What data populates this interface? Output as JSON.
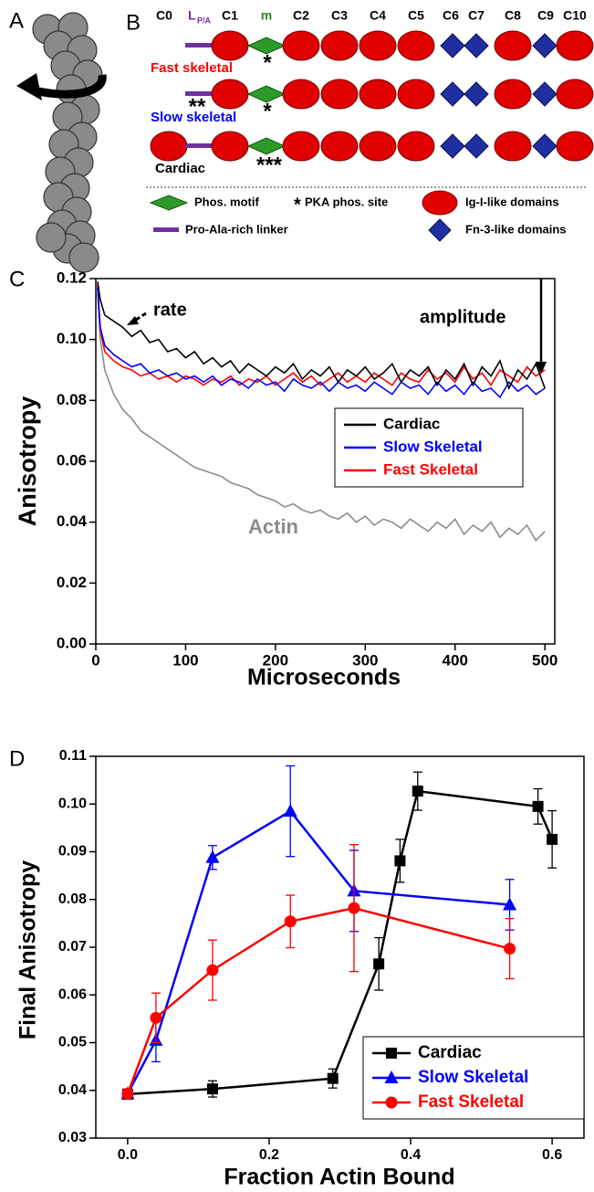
{
  "diagram": {
    "panel_labels": [
      "A",
      "B"
    ],
    "header": [
      "C0",
      {
        "main": "L",
        "sub": "P/A"
      },
      "C1",
      "m",
      "C2",
      "C3",
      "C4",
      "C5",
      "C6",
      "C7",
      "C8",
      "C9",
      "C10"
    ],
    "rows": [
      {
        "name": "Fast skeletal",
        "marks": [
          "*"
        ]
      },
      {
        "name": "Slow skeletal",
        "marks": [
          "**",
          "*"
        ]
      },
      {
        "name": "Cardiac",
        "marks": [
          "***"
        ]
      }
    ],
    "legend": [
      "Phos. motif",
      "*",
      "PKA phos. site",
      "Ig-I-like domains",
      "Pro-Ala-rich linker",
      "Fn-3-like domains"
    ]
  },
  "chart_data": [
    {
      "type": "line",
      "panel_label": "C",
      "xlabel": "Microseconds",
      "ylabel": "Anisotropy",
      "xlim": [
        0,
        511
      ],
      "ylim": [
        0,
        0.12
      ],
      "xticks": [
        0,
        100,
        200,
        300,
        400,
        500
      ],
      "yticks": [
        {
          "value": 0,
          "label": "0.00"
        },
        0.02,
        0.04,
        0.06,
        0.08,
        {
          "value": 0.1,
          "label": "0.10"
        },
        0.12
      ],
      "x": [
        2,
        5,
        10,
        20,
        30,
        40,
        50,
        60,
        70,
        80,
        90,
        100,
        110,
        120,
        130,
        140,
        150,
        160,
        170,
        180,
        190,
        200,
        210,
        220,
        230,
        240,
        250,
        260,
        270,
        280,
        290,
        300,
        310,
        320,
        330,
        340,
        350,
        360,
        370,
        380,
        390,
        400,
        410,
        420,
        430,
        440,
        450,
        460,
        470,
        480,
        490,
        500
      ],
      "series": [
        {
          "color": "#8c8c8c",
          "values": [
            0.115,
            0.1,
            0.09,
            0.082,
            0.077,
            0.074,
            0.07,
            0.068,
            0.066,
            0.064,
            0.062,
            0.06,
            0.058,
            0.057,
            0.056,
            0.055,
            0.053,
            0.052,
            0.051,
            0.049,
            0.048,
            0.047,
            0.045,
            0.046,
            0.044,
            0.043,
            0.044,
            0.042,
            0.041,
            0.043,
            0.04,
            0.042,
            0.039,
            0.041,
            0.04,
            0.038,
            0.041,
            0.039,
            0.037,
            0.04,
            0.038,
            0.041,
            0.036,
            0.039,
            0.037,
            0.04,
            0.035,
            0.038,
            0.036,
            0.039,
            0.034,
            0.037
          ]
        },
        {
          "name": "Fast Skeletal",
          "color": "#ff0000",
          "values": [
            0.118,
            0.103,
            0.096,
            0.093,
            0.091,
            0.09,
            0.088,
            0.089,
            0.087,
            0.088,
            0.086,
            0.088,
            0.087,
            0.085,
            0.087,
            0.086,
            0.088,
            0.085,
            0.087,
            0.086,
            0.088,
            0.085,
            0.087,
            0.089,
            0.086,
            0.088,
            0.085,
            0.087,
            0.089,
            0.086,
            0.088,
            0.086,
            0.089,
            0.087,
            0.085,
            0.089,
            0.087,
            0.086,
            0.09,
            0.087,
            0.089,
            0.086,
            0.091,
            0.087,
            0.089,
            0.085,
            0.09,
            0.088,
            0.086,
            0.091,
            0.088,
            0.09
          ]
        },
        {
          "name": "Slow Skeletal",
          "color": "#0000ff",
          "values": [
            0.117,
            0.104,
            0.098,
            0.095,
            0.093,
            0.091,
            0.092,
            0.089,
            0.09,
            0.088,
            0.089,
            0.087,
            0.088,
            0.086,
            0.088,
            0.085,
            0.087,
            0.086,
            0.084,
            0.087,
            0.085,
            0.086,
            0.083,
            0.087,
            0.085,
            0.084,
            0.086,
            0.083,
            0.086,
            0.084,
            0.085,
            0.083,
            0.086,
            0.084,
            0.082,
            0.086,
            0.084,
            0.085,
            0.082,
            0.086,
            0.083,
            0.085,
            0.082,
            0.086,
            0.083,
            0.084,
            0.081,
            0.086,
            0.083,
            0.085,
            0.082,
            0.084
          ]
        },
        {
          "name": "Cardiac",
          "color": "#000000",
          "values": [
            0.119,
            0.113,
            0.108,
            0.106,
            0.104,
            0.101,
            0.103,
            0.099,
            0.1,
            0.096,
            0.097,
            0.094,
            0.096,
            0.092,
            0.094,
            0.091,
            0.093,
            0.089,
            0.092,
            0.09,
            0.088,
            0.091,
            0.089,
            0.092,
            0.087,
            0.09,
            0.088,
            0.091,
            0.086,
            0.09,
            0.088,
            0.091,
            0.087,
            0.089,
            0.092,
            0.086,
            0.09,
            0.088,
            0.091,
            0.085,
            0.09,
            0.087,
            0.092,
            0.085,
            0.091,
            0.088,
            0.093,
            0.084,
            0.09,
            0.087,
            0.092,
            0.084
          ]
        }
      ],
      "legend_order": [
        3,
        2,
        1
      ],
      "annotations": [
        "rate",
        "amplitude",
        "Actin"
      ],
      "legend": "center right"
    },
    {
      "type": "line",
      "panel_label": "D",
      "xlabel": "Fraction Actin Bound",
      "ylabel": "Final Anisotropy",
      "xlim": [
        -0.045,
        0.645
      ],
      "ylim": [
        0.03,
        0.11
      ],
      "xticks": [
        {
          "value": 0,
          "label": "0.0"
        },
        0.2,
        0.4,
        0.6
      ],
      "yticks": [
        0.03,
        0.04,
        0.05,
        0.06,
        0.07,
        0.08,
        0.09,
        {
          "value": 0.1,
          "label": "0.10"
        },
        0.11
      ],
      "series": [
        {
          "name": "Cardiac",
          "color": "#000000",
          "marker": "square",
          "x": [
            0,
            0.12,
            0.29,
            0.355,
            0.385,
            0.41,
            0.58,
            0.6
          ],
          "values": [
            0.0392,
            0.0403,
            0.0425,
            0.0665,
            0.0881,
            0.1027,
            0.0995,
            0.0926
          ],
          "errors": [
            0.001,
            0.0017,
            0.002,
            0.0055,
            0.0045,
            0.004,
            0.0037,
            0.006
          ]
        },
        {
          "name": "Slow Skeletal",
          "color": "#0000ff",
          "marker": "triangle",
          "x": [
            0,
            0.04,
            0.12,
            0.23,
            0.32,
            0.54
          ],
          "values": [
            0.0393,
            0.0505,
            0.0888,
            0.0985,
            0.0818,
            0.0789
          ],
          "errors": [
            0.001,
            0.0045,
            0.0025,
            0.0095,
            0.0085,
            0.0053
          ]
        },
        {
          "name": "Fast Skeletal",
          "color": "#ff0000",
          "marker": "circle",
          "x": [
            0,
            0.04,
            0.12,
            0.23,
            0.32,
            0.54
          ],
          "values": [
            0.0393,
            0.0552,
            0.0652,
            0.0754,
            0.0782,
            0.0697
          ],
          "errors": [
            0.001,
            0.0052,
            0.0063,
            0.0055,
            0.0133,
            0.0063
          ]
        }
      ],
      "legend_order": [
        0,
        1,
        2
      ],
      "legend": "lower right"
    }
  ]
}
